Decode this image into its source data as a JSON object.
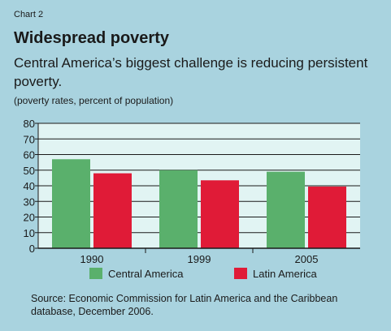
{
  "header": {
    "chart_label": "Chart 2",
    "title": "Widespread poverty",
    "subtitle": "Central America’s biggest challenge is reducing persistent poverty.",
    "units": "(poverty rates, percent of population)"
  },
  "footer": {
    "source": "Source: Economic Commission for Latin America and the Caribbean database, December 2006."
  },
  "colors": {
    "background": "#a9d3df",
    "plot_background": "#e1f4f3",
    "central_america": "#5ab06c",
    "latin_america": "#e01b37"
  },
  "chart_data": {
    "type": "bar",
    "title": "Widespread poverty",
    "subtitle": "Central America’s biggest challenge is reducing persistent poverty.",
    "ylabel": "",
    "xlabel": "",
    "categories": [
      "1990",
      "1999",
      "2005"
    ],
    "series": [
      {
        "name": "Central America",
        "values": [
          57,
          50,
          49
        ]
      },
      {
        "name": "Latin America",
        "values": [
          48,
          43.5,
          39.5
        ]
      }
    ],
    "ylim": [
      0,
      80
    ],
    "yticks": [
      0,
      10,
      20,
      30,
      40,
      50,
      60,
      70,
      80
    ],
    "grid": true,
    "legend": "bottom"
  }
}
